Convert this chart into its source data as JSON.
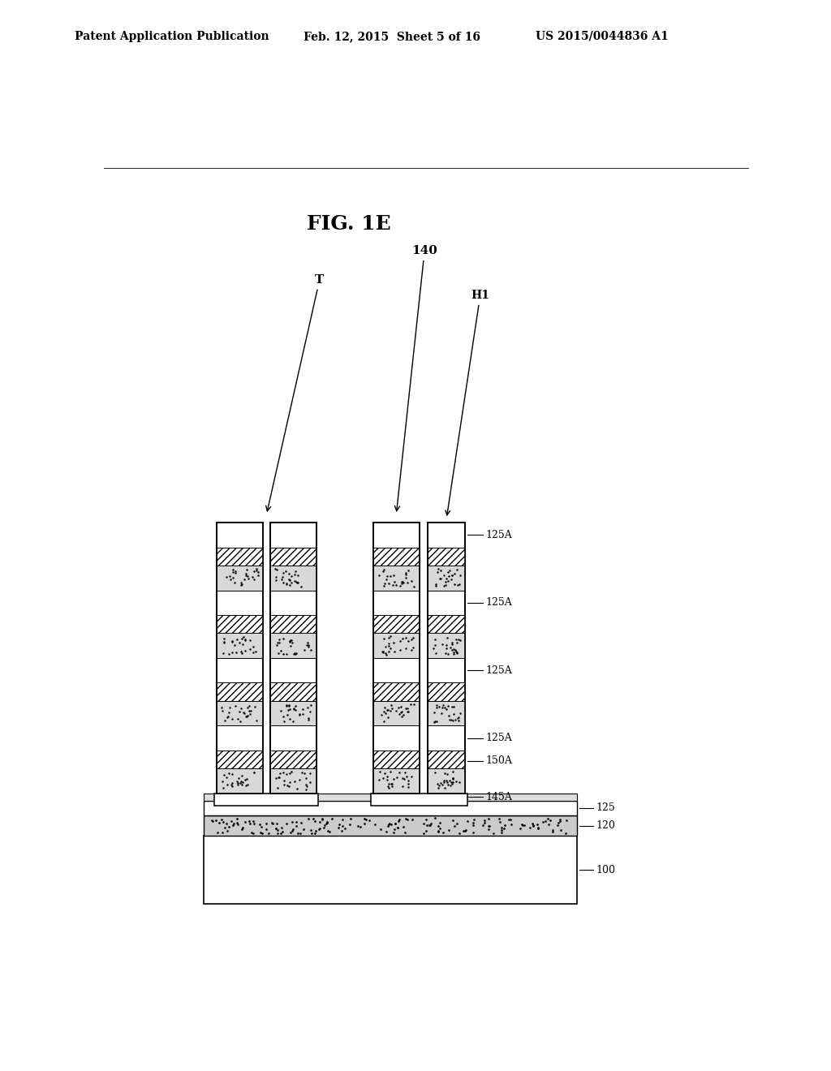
{
  "title_line1": "Patent Application Publication",
  "title_line2": "Feb. 12, 2015  Sheet 5 of 16",
  "title_line3": "US 2015/0044836 A1",
  "fig_label": "FIG. 1E",
  "background": "#ffffff"
}
